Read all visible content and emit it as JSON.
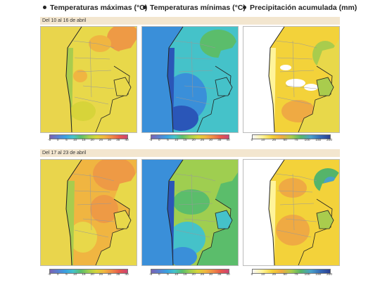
{
  "columns": [
    {
      "title": "Temperaturas máximas (°C)"
    },
    {
      "title": "Temperaturas mínimas (°C)"
    },
    {
      "title": "Precipitación acumulada (mm)"
    }
  ],
  "periods": [
    {
      "label": "Del 10 al 16 de abril"
    },
    {
      "label": "Del 17 al 23 de abril"
    }
  ],
  "scales": {
    "temperature": {
      "ticks": [
        "-5",
        "0",
        "5",
        "10",
        "15",
        "20",
        "25",
        "30",
        "35",
        "40"
      ]
    },
    "precipitation": {
      "ticks": [
        "0",
        "10",
        "25",
        "50",
        "75",
        "100",
        "150",
        "200"
      ]
    }
  },
  "colors": {
    "warm_yellow": "#e8d84a",
    "orange": "#ee9a45",
    "green": "#a9cc4d",
    "cyan": "#45c2c9",
    "blue": "#3a8fd9",
    "deep_blue": "#2a56b8",
    "ocean": "#ffffff"
  }
}
